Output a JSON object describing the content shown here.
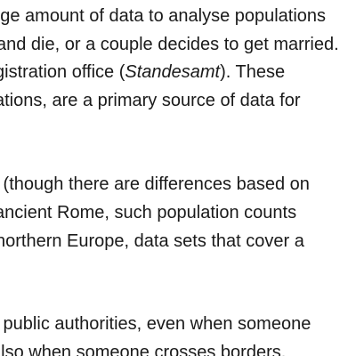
{
  "document": {
    "paragraphs": [
      {
        "lines": [
          {
            "text": "large amount of data to analyse populations"
          },
          {
            "text": "and die, or a couple decides to get married."
          },
          {
            "before": "gistration office (",
            "italic": "Standesamt",
            "after": "). These"
          },
          {
            "text": "ations, are a primary source of data for"
          }
        ]
      },
      {
        "lines": [
          {
            "text": "y (though there are differences based on"
          },
          {
            "text": "ancient Rome, such population counts"
          },
          {
            "text": " northern Europe, data sets that cover a"
          }
        ]
      },
      {
        "lines": [
          {
            "text": "y public authorities, even when someone"
          },
          {
            "text": "also when someone crosses borders."
          }
        ]
      }
    ]
  }
}
